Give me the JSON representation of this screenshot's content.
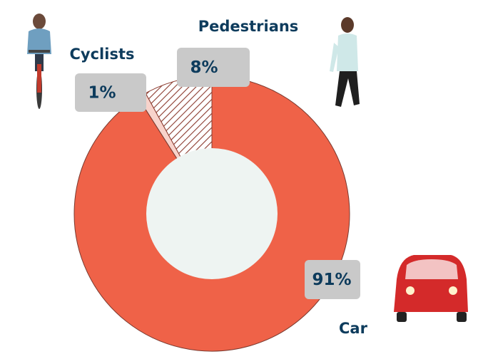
{
  "chart_data": {
    "type": "donut",
    "categories": [
      "Car",
      "Cyclists",
      "Pedestrians"
    ],
    "values": [
      91,
      1,
      8
    ],
    "value_labels": [
      "91%",
      "1%",
      "8%"
    ],
    "colors": [
      "#ef6248",
      "#f8d3cb",
      "#8b3a2e"
    ],
    "hatch": [
      false,
      false,
      true
    ]
  }
}
